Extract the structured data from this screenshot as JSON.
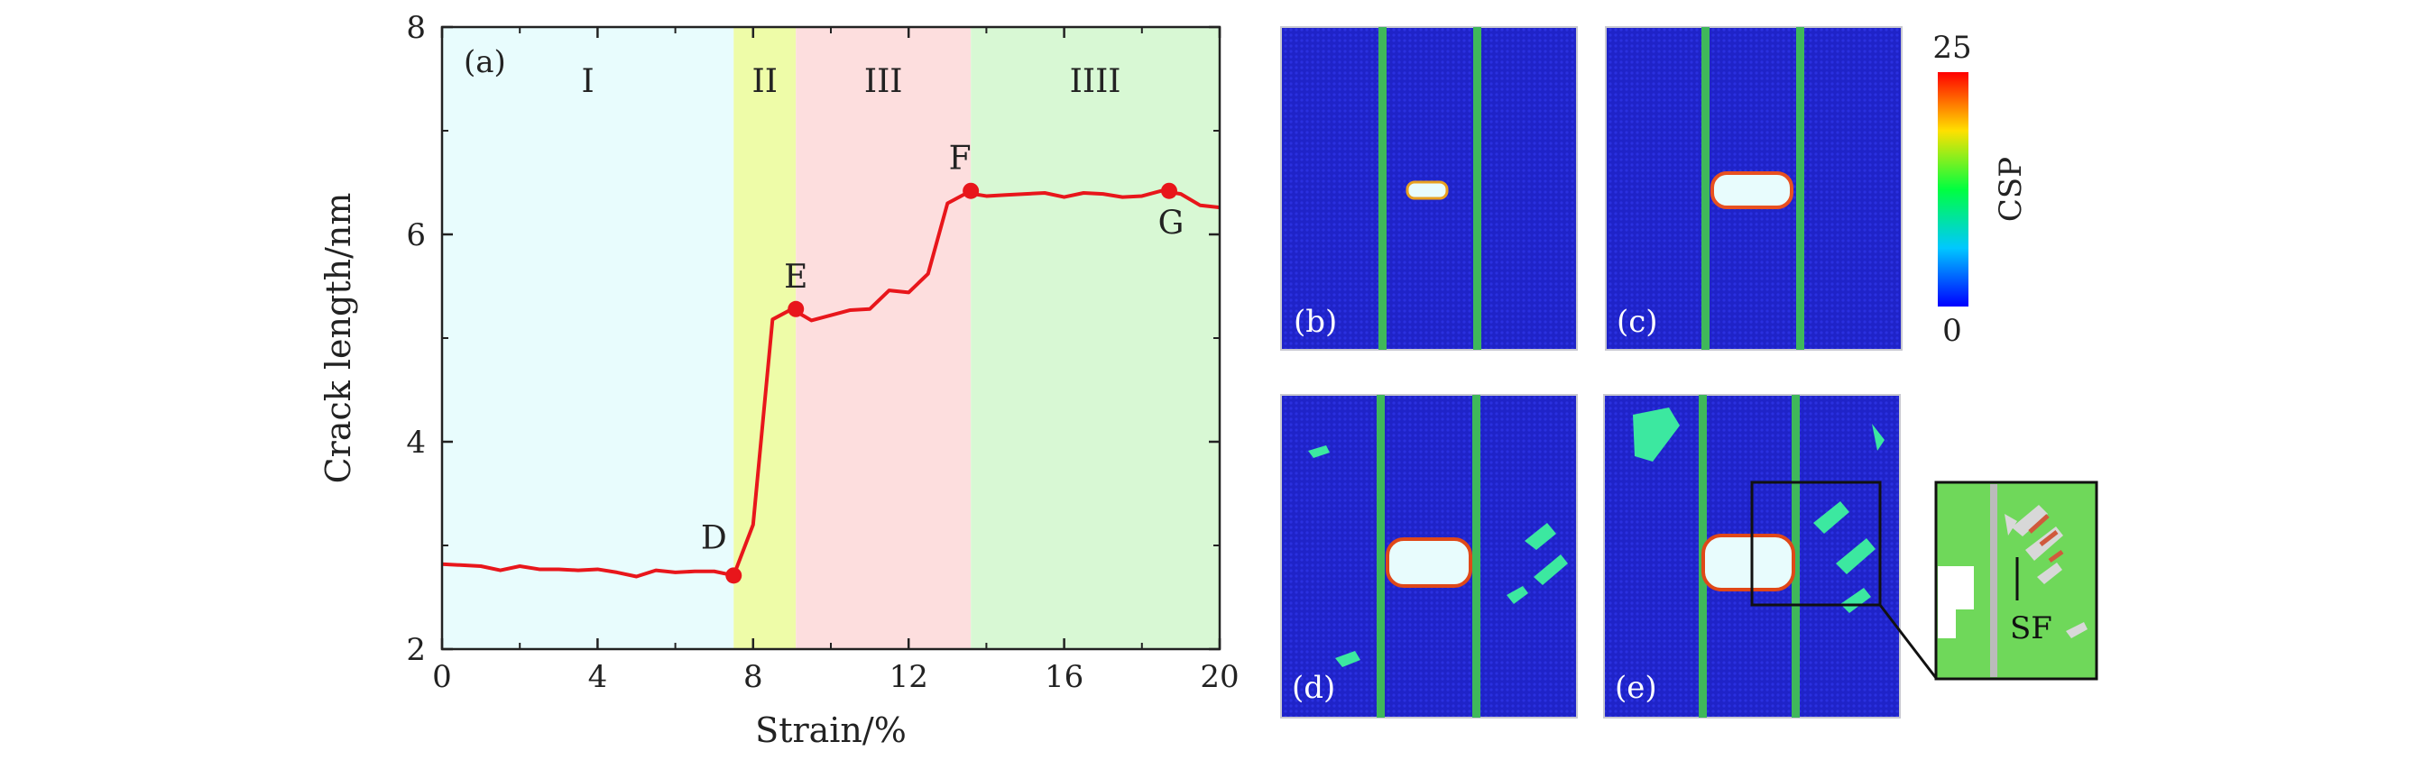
{
  "chart_data": {
    "type": "line",
    "panel_label": "(a)",
    "xlabel": "Strain/%",
    "ylabel": "Crack length/nm",
    "xlim": [
      0,
      20
    ],
    "ylim": [
      2,
      8
    ],
    "x_ticks": [
      "0",
      "4",
      "8",
      "12",
      "16",
      "20"
    ],
    "y_ticks": [
      "2",
      "4",
      "6",
      "8"
    ],
    "regions": [
      {
        "label": "I",
        "x_start": 0,
        "x_end": 7.5,
        "color": "#e8fcfd"
      },
      {
        "label": "II",
        "x_start": 7.5,
        "x_end": 9.1,
        "color": "#eefca8"
      },
      {
        "label": "III",
        "x_start": 9.1,
        "x_end": 13.6,
        "color": "#fddede"
      },
      {
        "label": "IIII",
        "x_start": 13.6,
        "x_end": 20,
        "color": "#d8f8d4"
      }
    ],
    "series": [
      {
        "color": "#e8161b",
        "x": [
          0,
          1,
          1.5,
          2,
          2.5,
          3,
          3.5,
          4,
          4.5,
          5,
          5.5,
          6,
          6.5,
          7,
          7.5,
          8,
          8.5,
          9,
          9.5,
          10,
          10.5,
          11,
          11.5,
          12,
          12.5,
          13,
          13.5,
          14,
          14.5,
          15,
          15.5,
          16,
          16.5,
          17,
          17.5,
          18,
          18.5,
          19,
          19.5,
          20
        ],
        "y": [
          2.82,
          2.8,
          2.76,
          2.8,
          2.77,
          2.77,
          2.76,
          2.77,
          2.74,
          2.7,
          2.76,
          2.74,
          2.75,
          2.75,
          2.71,
          3.2,
          5.18,
          5.28,
          5.17,
          5.22,
          5.27,
          5.28,
          5.46,
          5.44,
          5.62,
          6.3,
          6.4,
          6.37,
          6.38,
          6.39,
          6.4,
          6.36,
          6.4,
          6.39,
          6.36,
          6.37,
          6.42,
          6.39,
          6.28,
          6.26
        ]
      }
    ],
    "marked_points": [
      {
        "label": "D",
        "x": 7.5,
        "y": 2.71
      },
      {
        "label": "E",
        "x": 9.1,
        "y": 5.28
      },
      {
        "label": "F",
        "x": 13.6,
        "y": 6.42
      },
      {
        "label": "G",
        "x": 18.7,
        "y": 6.42
      }
    ]
  },
  "snapshots": [
    {
      "label": "(b)"
    },
    {
      "label": "(c)"
    },
    {
      "label": "(d)"
    },
    {
      "label": "(e)"
    }
  ],
  "colorbar": {
    "max": "25",
    "min": "0",
    "title": "CSP"
  },
  "inset": {
    "label": "SF"
  },
  "colors": {
    "background": "#1f23c8",
    "stacking_fault": "#3cc86a",
    "crack": "#e8fcfd",
    "inset_bg": "#6fd85a"
  }
}
